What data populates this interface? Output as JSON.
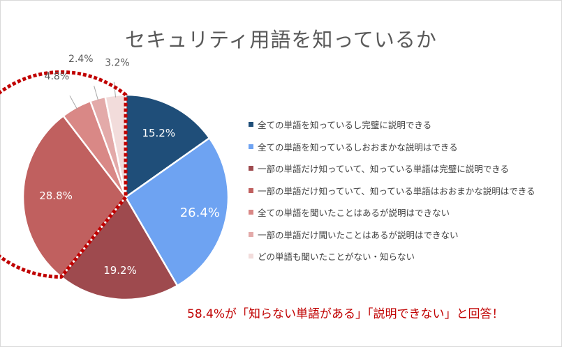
{
  "chart_data": {
    "type": "pie",
    "title": "セキュリティ用語を知っているか",
    "categories": [
      "全ての単語を知っているし完璧に説明できる",
      "全ての単語を知っているしおおまかな説明はできる",
      "一部の単語だけ知っていて、知っている単語は完璧に説明できる",
      "一部の単語だけ知っていて、知っている単語はおおまかな説明はできる",
      "全ての単語を聞いたことはあるが説明はできない",
      "一部の単語だけ聞いたことはあるが説明はできない",
      "どの単語も聞いたことがない・知らない"
    ],
    "values": [
      15.2,
      26.4,
      19.2,
      28.8,
      4.8,
      2.4,
      3.2
    ],
    "data_labels": [
      "15.2%",
      "26.4%",
      "19.2%",
      "28.8%",
      "4.8%",
      "2.4%",
      "3.2%"
    ],
    "colors": [
      "#1f4e79",
      "#6ea3f2",
      "#9e4a4e",
      "#c0605f",
      "#d98886",
      "#e3aaa9",
      "#f2dcdb"
    ],
    "label_colors": [
      "#ffffff",
      "#ffffff",
      "#ffffff",
      "#ffffff",
      "#595959",
      "#595959",
      "#595959"
    ],
    "highlight": {
      "slice_indices": [
        3,
        4,
        5,
        6
      ],
      "color": "#c00000",
      "style": "dotted outline"
    },
    "legend_position": "right",
    "annotation": "58.4%が「知らない単語がある」「説明できない」と回答！"
  }
}
